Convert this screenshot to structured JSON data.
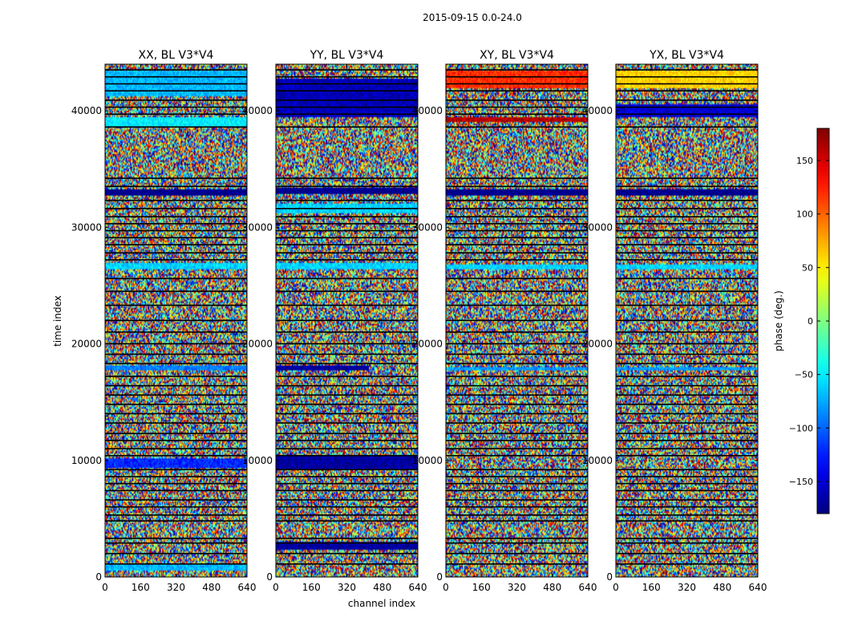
{
  "figure": {
    "suptitle": "2015-09-15 0.0-24.0",
    "xlabel": "channel index",
    "ylabel": "time index"
  },
  "chart_data": [
    {
      "type": "heatmap",
      "title": "XX, BL V3*V4",
      "xlim": [
        0,
        640
      ],
      "ylim": [
        0,
        44000
      ],
      "xticks": [
        0,
        160,
        320,
        480,
        640
      ],
      "yticks": [
        0,
        10000,
        20000,
        30000,
        40000
      ],
      "z_range": [
        -180,
        180
      ],
      "dominant_bands": [
        {
          "t": [
            41200,
            43500
          ],
          "phase": -70,
          "channels": [
            0,
            640
          ]
        },
        {
          "t": [
            38700,
            39400
          ],
          "phase": -50,
          "channels": [
            0,
            640
          ]
        },
        {
          "t": [
            32700,
            33300
          ],
          "phase": -180,
          "channels": [
            0,
            640
          ]
        },
        {
          "t": [
            26400,
            26900
          ],
          "phase": -60,
          "channels": [
            0,
            640
          ]
        },
        {
          "t": [
            17700,
            18100
          ],
          "phase": -90,
          "channels": [
            0,
            640
          ]
        },
        {
          "t": [
            9400,
            10200
          ],
          "phase": -120,
          "channels": [
            0,
            640
          ]
        },
        {
          "t": [
            600,
            1100
          ],
          "phase": -70,
          "channels": [
            0,
            640
          ]
        }
      ]
    },
    {
      "type": "heatmap",
      "title": "YY, BL V3*V4",
      "xlim": [
        0,
        640
      ],
      "ylim": [
        0,
        44000
      ],
      "xticks": [
        0,
        160,
        320,
        480,
        640
      ],
      "yticks": [
        0,
        10000,
        20000,
        30000,
        40000
      ],
      "z_range": [
        -180,
        180
      ],
      "dominant_bands": [
        {
          "t": [
            39500,
            42800
          ],
          "phase": -160,
          "channels": [
            0,
            640
          ]
        },
        {
          "t": [
            32800,
            33400
          ],
          "phase": -180,
          "channels": [
            0,
            640
          ]
        },
        {
          "t": [
            31200,
            32100
          ],
          "phase": -60,
          "channels": [
            0,
            640
          ]
        },
        {
          "t": [
            26400,
            26900
          ],
          "phase": -60,
          "channels": [
            0,
            640
          ]
        },
        {
          "t": [
            17700,
            18100
          ],
          "phase": -170,
          "channels": [
            0,
            420
          ]
        },
        {
          "t": [
            9200,
            10400
          ],
          "phase": -170,
          "channels": [
            0,
            640
          ]
        },
        {
          "t": [
            2400,
            3000
          ],
          "phase": -170,
          "channels": [
            0,
            640
          ]
        }
      ]
    },
    {
      "type": "heatmap",
      "title": "XY, BL V3*V4",
      "xlim": [
        0,
        640
      ],
      "ylim": [
        0,
        44000
      ],
      "xticks": [
        0,
        160,
        320,
        480,
        640
      ],
      "yticks": [
        0,
        10000,
        20000,
        30000,
        40000
      ],
      "z_range": [
        -180,
        180
      ],
      "dominant_bands": [
        {
          "t": [
            42000,
            43500
          ],
          "phase": 120,
          "channels": [
            0,
            640
          ]
        },
        {
          "t": [
            39000,
            39400
          ],
          "phase": 160,
          "channels": [
            0,
            640
          ]
        },
        {
          "t": [
            32700,
            33300
          ],
          "phase": -180,
          "channels": [
            0,
            640
          ]
        },
        {
          "t": [
            26400,
            26800
          ],
          "phase": -60,
          "channels": [
            0,
            640
          ]
        },
        {
          "t": [
            17700,
            18000
          ],
          "phase": -80,
          "channels": [
            0,
            640
          ]
        }
      ]
    },
    {
      "type": "heatmap",
      "title": "YX, BL V3*V4",
      "xlim": [
        0,
        640
      ],
      "ylim": [
        0,
        44000
      ],
      "xticks": [
        0,
        160,
        320,
        480,
        640
      ],
      "yticks": [
        0,
        10000,
        20000,
        30000,
        40000
      ],
      "z_range": [
        -180,
        180
      ],
      "dominant_bands": [
        {
          "t": [
            42000,
            43500
          ],
          "phase": 60,
          "channels": [
            0,
            640
          ]
        },
        {
          "t": [
            39500,
            40500
          ],
          "phase": -150,
          "channels": [
            0,
            640
          ]
        },
        {
          "t": [
            32700,
            33300
          ],
          "phase": -180,
          "channels": [
            0,
            640
          ]
        },
        {
          "t": [
            26400,
            26800
          ],
          "phase": -60,
          "channels": [
            0,
            640
          ]
        },
        {
          "t": [
            17700,
            18000
          ],
          "phase": -80,
          "channels": [
            0,
            640
          ]
        }
      ]
    }
  ],
  "colorbar": {
    "label": "phase (deg.)",
    "range": [
      -180,
      180
    ],
    "ticks": [
      -150,
      -100,
      -50,
      0,
      50,
      100,
      150
    ],
    "tick_labels": [
      "−150",
      "−100",
      "−50",
      "0",
      "50",
      "100",
      "150"
    ],
    "colormap": "jet"
  },
  "flag_rows": [
    1100,
    2000,
    2900,
    3300,
    4800,
    5300,
    6000,
    6600,
    7400,
    8000,
    8600,
    9200,
    10400,
    11000,
    11700,
    12300,
    13200,
    14000,
    14800,
    15600,
    16400,
    17200,
    18300,
    19100,
    20000,
    21000,
    22000,
    23300,
    24500,
    25600,
    27200,
    27800,
    28500,
    29100,
    29700,
    30300,
    30900,
    31600,
    32300,
    33500,
    34200,
    38600,
    39700,
    40300,
    40900,
    41700,
    42300,
    42900,
    43500
  ],
  "colors": {
    "background": "#ffffff",
    "axis": "#000000",
    "flag": "#000000"
  }
}
